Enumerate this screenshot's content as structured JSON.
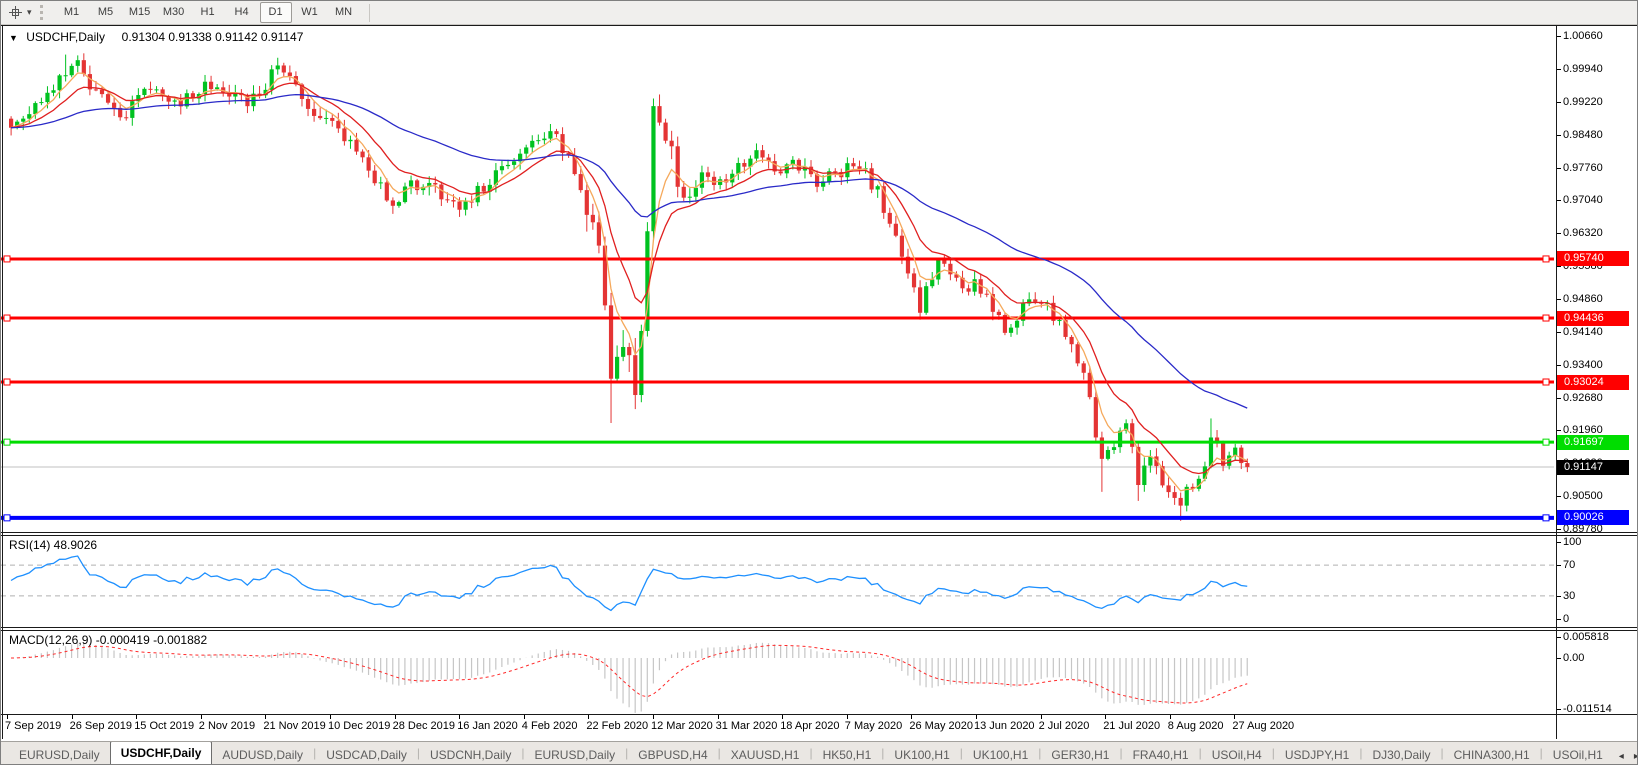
{
  "toolbar": {
    "timeframes": [
      "M1",
      "M5",
      "M15",
      "M30",
      "H1",
      "H4",
      "D1",
      "W1",
      "MN"
    ],
    "active_timeframe": "D1",
    "cursor_icon": "crosshair-icon",
    "dropdown_icon": "▾"
  },
  "chart_header": {
    "collapse_icon": "▼",
    "symbol": "USDCHF,Daily",
    "ohlc": "0.91304 0.91338 0.91142 0.91147"
  },
  "price_axis": {
    "ticks": [
      "1.00660",
      "0.99940",
      "0.99220",
      "0.98480",
      "0.97760",
      "0.97040",
      "0.96320",
      "0.95580",
      "0.94860",
      "0.94140",
      "0.93400",
      "0.92680",
      "0.91960",
      "0.91220",
      "0.90500",
      "0.89780"
    ]
  },
  "levels": [
    {
      "label": "0.95740",
      "price": 0.9574,
      "color": "#ff0000",
      "width": 3
    },
    {
      "label": "0.94436",
      "price": 0.94436,
      "color": "#ff0000",
      "width": 3
    },
    {
      "label": "0.93024",
      "price": 0.93024,
      "color": "#ff0000",
      "width": 3
    },
    {
      "label": "0.91697",
      "price": 0.91697,
      "color": "#00dd00",
      "width": 3
    },
    {
      "label": "0.90026",
      "price": 0.90026,
      "color": "#0000ff",
      "width": 4
    }
  ],
  "current_price": {
    "label": "0.91147",
    "price": 0.91147,
    "line_color": "#c0c0c0",
    "tag_bg": "#000000"
  },
  "rsi": {
    "title": "RSI(14) 48.9026",
    "line_color": "#1e90ff",
    "axis": [
      {
        "label": "100",
        "value": 100,
        "dashed": false
      },
      {
        "label": "70",
        "value": 70,
        "dashed": true
      },
      {
        "label": "30",
        "value": 30,
        "dashed": true
      },
      {
        "label": "0",
        "value": 0,
        "dashed": false
      }
    ]
  },
  "macd": {
    "title": "MACD(12,26,9) -0.000419 -0.001882",
    "hist_color": "#c6c6c6",
    "signal_color": "#ff2a2a",
    "axis": [
      {
        "label": "0.005818",
        "value": 0.005818
      },
      {
        "label": "0.00",
        "value": 0
      },
      {
        "label": "-0.011514",
        "value": -0.011514
      }
    ]
  },
  "date_axis": {
    "labels": [
      "7 Sep 2019",
      "26 Sep 2019",
      "15 Oct 2019",
      "2 Nov 2019",
      "21 Nov 2019",
      "10 Dec 2019",
      "28 Dec 2019",
      "16 Jan 2020",
      "4 Feb 2020",
      "22 Feb 2020",
      "12 Mar 2020",
      "31 Mar 2020",
      "18 Apr 2020",
      "7 May 2020",
      "26 May 2020",
      "13 Jun 2020",
      "2 Jul 2020",
      "21 Jul 2020",
      "8 Aug 2020",
      "27 Aug 2020"
    ]
  },
  "tabs": {
    "items": [
      "EURUSD,Daily",
      "USDCHF,Daily",
      "AUDUSD,Daily",
      "USDCAD,Daily",
      "USDCNH,Daily",
      "EURUSD,Daily",
      "GBPUSD,H4",
      "XAUUSD,H1",
      "HK50,H1",
      "UK100,H1",
      "UK100,H1",
      "GER30,H1",
      "FRA40,H1",
      "USOil,H4",
      "USDJPY,H1",
      "DJ30,Daily",
      "CHINA300,H1",
      "USOil,H1"
    ],
    "active_index": 1,
    "scroll_left_icon": "◂",
    "scroll_right_icon": "▸"
  },
  "chart_data": {
    "type": "candlestick",
    "symbol": "USDCHF",
    "timeframe": "Daily",
    "ohlc_header": {
      "open": "0.91304",
      "high": "0.91338",
      "low": "0.91142",
      "close": "0.91147"
    },
    "price_axis_range": {
      "top": 1.0066,
      "bottom": 0.8978
    },
    "n_candles": 205,
    "last_close": 0.91147,
    "up_color": "#00c220",
    "down_color": "#e43434",
    "moving_averages": [
      {
        "name": "fast",
        "period": 5,
        "color": "#f5a95c"
      },
      {
        "name": "mid",
        "period": 12,
        "color": "#e02020"
      },
      {
        "name": "slow",
        "period": 45,
        "color": "#2a2ac8"
      }
    ],
    "horizontal_levels": [
      0.9574,
      0.94436,
      0.93024,
      0.91697,
      0.90026
    ],
    "close_anchors": [
      [
        0,
        0.9865
      ],
      [
        3,
        0.9905
      ],
      [
        6,
        0.993
      ],
      [
        9,
        0.9988
      ],
      [
        11,
        1.0
      ],
      [
        13,
        0.995
      ],
      [
        16,
        0.991
      ],
      [
        18,
        0.9885
      ],
      [
        21,
        0.993
      ],
      [
        24,
        0.995
      ],
      [
        27,
        0.9915
      ],
      [
        30,
        0.994
      ],
      [
        33,
        0.9962
      ],
      [
        36,
        0.993
      ],
      [
        39,
        0.992
      ],
      [
        42,
        0.996
      ],
      [
        44,
        0.9995
      ],
      [
        46,
        0.997
      ],
      [
        48,
        0.993
      ],
      [
        50,
        0.99
      ],
      [
        53,
        0.9865
      ],
      [
        56,
        0.983
      ],
      [
        58,
        0.9805
      ],
      [
        60,
        0.9745
      ],
      [
        63,
        0.97
      ],
      [
        66,
        0.9735
      ],
      [
        69,
        0.975
      ],
      [
        71,
        0.9715
      ],
      [
        74,
        0.968
      ],
      [
        77,
        0.9725
      ],
      [
        80,
        0.976
      ],
      [
        83,
        0.979
      ],
      [
        86,
        0.982
      ],
      [
        88,
        0.985
      ],
      [
        90,
        0.9835
      ],
      [
        92,
        0.979
      ],
      [
        94,
        0.9735
      ],
      [
        96,
        0.965
      ],
      [
        97,
        0.96
      ],
      [
        98,
        0.948
      ],
      [
        99,
        0.933
      ],
      [
        100,
        0.938
      ],
      [
        101,
        0.94
      ],
      [
        102,
        0.934
      ],
      [
        103,
        0.929
      ],
      [
        104,
        0.942
      ],
      [
        105,
        0.965
      ],
      [
        106,
        0.99
      ],
      [
        107,
        0.986
      ],
      [
        108,
        0.984
      ],
      [
        110,
        0.9755
      ],
      [
        111,
        0.97
      ],
      [
        113,
        0.9745
      ],
      [
        114,
        0.976
      ],
      [
        116,
        0.973
      ],
      [
        118,
        0.975
      ],
      [
        120,
        0.978
      ],
      [
        123,
        0.9815
      ],
      [
        125,
        0.978
      ],
      [
        127,
        0.976
      ],
      [
        129,
        0.9785
      ],
      [
        131,
        0.977
      ],
      [
        133,
        0.974
      ],
      [
        135,
        0.9755
      ],
      [
        137,
        0.9765
      ],
      [
        139,
        0.978
      ],
      [
        141,
        0.976
      ],
      [
        143,
        0.972
      ],
      [
        145,
        0.966
      ],
      [
        147,
        0.959
      ],
      [
        149,
        0.951
      ],
      [
        150,
        0.947
      ],
      [
        152,
        0.954
      ],
      [
        153,
        0.957
      ],
      [
        155,
        0.953
      ],
      [
        157,
        0.9505
      ],
      [
        159,
        0.952
      ],
      [
        161,
        0.9495
      ],
      [
        163,
        0.944
      ],
      [
        164,
        0.9415
      ],
      [
        166,
        0.945
      ],
      [
        168,
        0.948
      ],
      [
        170,
        0.9475
      ],
      [
        172,
        0.945
      ],
      [
        174,
        0.94
      ],
      [
        176,
        0.9355
      ],
      [
        177,
        0.932
      ],
      [
        178,
        0.9275
      ],
      [
        179,
        0.919
      ],
      [
        180,
        0.912
      ],
      [
        181,
        0.914
      ],
      [
        182,
        0.916
      ],
      [
        183,
        0.9185
      ],
      [
        184,
        0.92
      ],
      [
        185,
        0.915
      ],
      [
        186,
        0.909
      ],
      [
        187,
        0.911
      ],
      [
        188,
        0.9135
      ],
      [
        189,
        0.9105
      ],
      [
        190,
        0.908
      ],
      [
        191,
        0.906
      ],
      [
        192,
        0.904
      ],
      [
        193,
        0.903
      ],
      [
        194,
        0.906
      ],
      [
        195,
        0.908
      ],
      [
        196,
        0.91
      ],
      [
        197,
        0.912
      ],
      [
        198,
        0.918
      ],
      [
        199,
        0.9155
      ],
      [
        200,
        0.913
      ],
      [
        201,
        0.914
      ],
      [
        202,
        0.915
      ],
      [
        203,
        0.913
      ],
      [
        204,
        0.91147
      ]
    ],
    "wick_overrides": [
      {
        "i": 9,
        "high": 1.0025
      },
      {
        "i": 44,
        "high": 1.0018
      },
      {
        "i": 99,
        "low": 0.9212
      },
      {
        "i": 106,
        "high": 0.9928
      },
      {
        "i": 180,
        "low": 0.906
      },
      {
        "i": 186,
        "low": 0.904
      },
      {
        "i": 193,
        "low": 0.8996
      },
      {
        "i": 198,
        "high": 0.9222
      }
    ]
  }
}
